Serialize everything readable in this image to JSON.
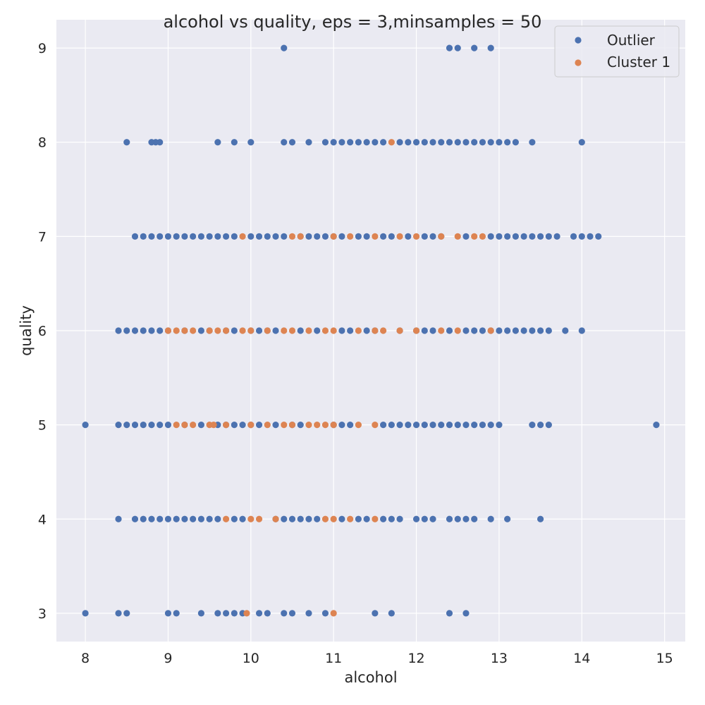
{
  "chart_data": {
    "type": "scatter",
    "title": "alcohol vs quality, eps = 3,minsamples = 50",
    "xlabel": "alcohol",
    "ylabel": "quality",
    "xlim": [
      7.65,
      15.25
    ],
    "ylim": [
      2.7,
      9.3
    ],
    "xticks": [
      8,
      9,
      10,
      11,
      12,
      13,
      14,
      15
    ],
    "yticks": [
      3,
      4,
      5,
      6,
      7,
      8,
      9
    ],
    "grid": true,
    "legend_position": "top-right",
    "series": [
      {
        "name": "Outlier",
        "color": "#4c72b0",
        "points": [
          [
            10.4,
            9
          ],
          [
            12.4,
            9
          ],
          [
            12.5,
            9
          ],
          [
            12.7,
            9
          ],
          [
            12.9,
            9
          ],
          [
            8.5,
            8
          ],
          [
            8.8,
            8
          ],
          [
            8.85,
            8
          ],
          [
            8.9,
            8
          ],
          [
            9.6,
            8
          ],
          [
            9.8,
            8
          ],
          [
            10.0,
            8
          ],
          [
            10.4,
            8
          ],
          [
            10.5,
            8
          ],
          [
            10.7,
            8
          ],
          [
            10.9,
            8
          ],
          [
            11.0,
            8
          ],
          [
            11.1,
            8
          ],
          [
            11.2,
            8
          ],
          [
            11.3,
            8
          ],
          [
            11.4,
            8
          ],
          [
            11.5,
            8
          ],
          [
            11.6,
            8
          ],
          [
            11.8,
            8
          ],
          [
            11.9,
            8
          ],
          [
            12.0,
            8
          ],
          [
            12.1,
            8
          ],
          [
            12.2,
            8
          ],
          [
            12.3,
            8
          ],
          [
            12.4,
            8
          ],
          [
            12.5,
            8
          ],
          [
            12.6,
            8
          ],
          [
            12.7,
            8
          ],
          [
            12.8,
            8
          ],
          [
            12.9,
            8
          ],
          [
            13.0,
            8
          ],
          [
            13.1,
            8
          ],
          [
            13.2,
            8
          ],
          [
            13.4,
            8
          ],
          [
            14.0,
            8
          ],
          [
            8.6,
            7
          ],
          [
            8.7,
            7
          ],
          [
            8.8,
            7
          ],
          [
            8.9,
            7
          ],
          [
            9.0,
            7
          ],
          [
            9.1,
            7
          ],
          [
            9.2,
            7
          ],
          [
            9.3,
            7
          ],
          [
            9.4,
            7
          ],
          [
            9.5,
            7
          ],
          [
            9.6,
            7
          ],
          [
            9.7,
            7
          ],
          [
            9.8,
            7
          ],
          [
            10.0,
            7
          ],
          [
            10.1,
            7
          ],
          [
            10.2,
            7
          ],
          [
            10.3,
            7
          ],
          [
            10.4,
            7
          ],
          [
            10.6,
            7
          ],
          [
            10.7,
            7
          ],
          [
            10.8,
            7
          ],
          [
            10.9,
            7
          ],
          [
            11.0,
            7
          ],
          [
            11.1,
            7
          ],
          [
            11.3,
            7
          ],
          [
            11.4,
            7
          ],
          [
            11.6,
            7
          ],
          [
            11.7,
            7
          ],
          [
            11.9,
            7
          ],
          [
            12.1,
            7
          ],
          [
            12.2,
            7
          ],
          [
            12.3,
            7
          ],
          [
            12.6,
            7
          ],
          [
            12.9,
            7
          ],
          [
            13.0,
            7
          ],
          [
            13.1,
            7
          ],
          [
            13.2,
            7
          ],
          [
            13.3,
            7
          ],
          [
            13.4,
            7
          ],
          [
            13.5,
            7
          ],
          [
            13.6,
            7
          ],
          [
            13.7,
            7
          ],
          [
            13.9,
            7
          ],
          [
            14.0,
            7
          ],
          [
            14.1,
            7
          ],
          [
            14.2,
            7
          ],
          [
            8.4,
            6
          ],
          [
            8.5,
            6
          ],
          [
            8.6,
            6
          ],
          [
            8.7,
            6
          ],
          [
            8.8,
            6
          ],
          [
            8.9,
            6
          ],
          [
            9.0,
            6
          ],
          [
            9.2,
            6
          ],
          [
            9.4,
            6
          ],
          [
            9.5,
            6
          ],
          [
            9.7,
            6
          ],
          [
            9.8,
            6
          ],
          [
            10.0,
            6
          ],
          [
            10.1,
            6
          ],
          [
            10.2,
            6
          ],
          [
            10.3,
            6
          ],
          [
            10.6,
            6
          ],
          [
            10.8,
            6
          ],
          [
            11.1,
            6
          ],
          [
            11.2,
            6
          ],
          [
            11.4,
            6
          ],
          [
            11.5,
            6
          ],
          [
            11.8,
            6
          ],
          [
            12.0,
            6
          ],
          [
            12.1,
            6
          ],
          [
            12.2,
            6
          ],
          [
            12.4,
            6
          ],
          [
            12.6,
            6
          ],
          [
            12.7,
            6
          ],
          [
            12.8,
            6
          ],
          [
            12.9,
            6
          ],
          [
            13.0,
            6
          ],
          [
            13.1,
            6
          ],
          [
            13.2,
            6
          ],
          [
            13.3,
            6
          ],
          [
            13.4,
            6
          ],
          [
            13.5,
            6
          ],
          [
            13.6,
            6
          ],
          [
            13.8,
            6
          ],
          [
            14.0,
            6
          ],
          [
            8.0,
            5
          ],
          [
            8.4,
            5
          ],
          [
            8.5,
            5
          ],
          [
            8.6,
            5
          ],
          [
            8.7,
            5
          ],
          [
            8.8,
            5
          ],
          [
            8.9,
            5
          ],
          [
            9.0,
            5
          ],
          [
            9.2,
            5
          ],
          [
            9.4,
            5
          ],
          [
            9.6,
            5
          ],
          [
            9.7,
            5
          ],
          [
            9.8,
            5
          ],
          [
            9.9,
            5
          ],
          [
            10.0,
            5
          ],
          [
            10.1,
            5
          ],
          [
            10.3,
            5
          ],
          [
            10.5,
            5
          ],
          [
            10.6,
            5
          ],
          [
            11.0,
            5
          ],
          [
            11.1,
            5
          ],
          [
            11.2,
            5
          ],
          [
            11.6,
            5
          ],
          [
            11.7,
            5
          ],
          [
            11.8,
            5
          ],
          [
            11.9,
            5
          ],
          [
            12.0,
            5
          ],
          [
            12.1,
            5
          ],
          [
            12.2,
            5
          ],
          [
            12.3,
            5
          ],
          [
            12.4,
            5
          ],
          [
            12.5,
            5
          ],
          [
            12.6,
            5
          ],
          [
            12.7,
            5
          ],
          [
            12.8,
            5
          ],
          [
            12.9,
            5
          ],
          [
            13.0,
            5
          ],
          [
            13.4,
            5
          ],
          [
            13.5,
            5
          ],
          [
            13.6,
            5
          ],
          [
            14.9,
            5
          ],
          [
            8.4,
            4
          ],
          [
            8.6,
            4
          ],
          [
            8.7,
            4
          ],
          [
            8.8,
            4
          ],
          [
            8.9,
            4
          ],
          [
            9.0,
            4
          ],
          [
            9.1,
            4
          ],
          [
            9.2,
            4
          ],
          [
            9.3,
            4
          ],
          [
            9.4,
            4
          ],
          [
            9.5,
            4
          ],
          [
            9.6,
            4
          ],
          [
            9.8,
            4
          ],
          [
            9.9,
            4
          ],
          [
            10.3,
            4
          ],
          [
            10.4,
            4
          ],
          [
            10.5,
            4
          ],
          [
            10.6,
            4
          ],
          [
            10.7,
            4
          ],
          [
            10.8,
            4
          ],
          [
            11.1,
            4
          ],
          [
            11.3,
            4
          ],
          [
            11.4,
            4
          ],
          [
            11.6,
            4
          ],
          [
            11.7,
            4
          ],
          [
            11.8,
            4
          ],
          [
            12.0,
            4
          ],
          [
            12.1,
            4
          ],
          [
            12.2,
            4
          ],
          [
            12.4,
            4
          ],
          [
            12.5,
            4
          ],
          [
            12.6,
            4
          ],
          [
            12.7,
            4
          ],
          [
            12.9,
            4
          ],
          [
            13.1,
            4
          ],
          [
            13.5,
            4
          ],
          [
            8.0,
            3
          ],
          [
            8.4,
            3
          ],
          [
            8.5,
            3
          ],
          [
            9.0,
            3
          ],
          [
            9.1,
            3
          ],
          [
            9.4,
            3
          ],
          [
            9.6,
            3
          ],
          [
            9.7,
            3
          ],
          [
            9.8,
            3
          ],
          [
            9.9,
            3
          ],
          [
            10.1,
            3
          ],
          [
            10.2,
            3
          ],
          [
            10.4,
            3
          ],
          [
            10.5,
            3
          ],
          [
            10.7,
            3
          ],
          [
            10.9,
            3
          ],
          [
            11.5,
            3
          ],
          [
            11.7,
            3
          ],
          [
            12.4,
            3
          ],
          [
            12.6,
            3
          ]
        ]
      },
      {
        "name": "Cluster 1",
        "color": "#dd8452",
        "points": [
          [
            11.7,
            8
          ],
          [
            9.9,
            7
          ],
          [
            10.5,
            7
          ],
          [
            10.6,
            7
          ],
          [
            11.0,
            7
          ],
          [
            11.2,
            7
          ],
          [
            11.5,
            7
          ],
          [
            11.8,
            7
          ],
          [
            12.0,
            7
          ],
          [
            12.3,
            7
          ],
          [
            12.5,
            7
          ],
          [
            12.7,
            7
          ],
          [
            12.8,
            7
          ],
          [
            9.0,
            6
          ],
          [
            9.1,
            6
          ],
          [
            9.2,
            6
          ],
          [
            9.3,
            6
          ],
          [
            9.5,
            6
          ],
          [
            9.6,
            6
          ],
          [
            9.7,
            6
          ],
          [
            9.9,
            6
          ],
          [
            10.0,
            6
          ],
          [
            10.2,
            6
          ],
          [
            10.4,
            6
          ],
          [
            10.5,
            6
          ],
          [
            10.7,
            6
          ],
          [
            10.9,
            6
          ],
          [
            11.0,
            6
          ],
          [
            11.3,
            6
          ],
          [
            11.5,
            6
          ],
          [
            11.6,
            6
          ],
          [
            11.8,
            6
          ],
          [
            12.0,
            6
          ],
          [
            12.3,
            6
          ],
          [
            12.5,
            6
          ],
          [
            12.9,
            6
          ],
          [
            9.1,
            5
          ],
          [
            9.2,
            5
          ],
          [
            9.3,
            5
          ],
          [
            9.5,
            5
          ],
          [
            9.55,
            5
          ],
          [
            9.7,
            5
          ],
          [
            10.0,
            5
          ],
          [
            10.2,
            5
          ],
          [
            10.4,
            5
          ],
          [
            10.5,
            5
          ],
          [
            10.7,
            5
          ],
          [
            10.8,
            5
          ],
          [
            10.9,
            5
          ],
          [
            11.0,
            5
          ],
          [
            11.3,
            5
          ],
          [
            11.5,
            5
          ],
          [
            9.7,
            4
          ],
          [
            10.0,
            4
          ],
          [
            10.1,
            4
          ],
          [
            10.3,
            4
          ],
          [
            10.9,
            4
          ],
          [
            11.0,
            4
          ],
          [
            11.2,
            4
          ],
          [
            11.5,
            4
          ],
          [
            9.95,
            3
          ],
          [
            11.0,
            3
          ]
        ]
      }
    ]
  }
}
